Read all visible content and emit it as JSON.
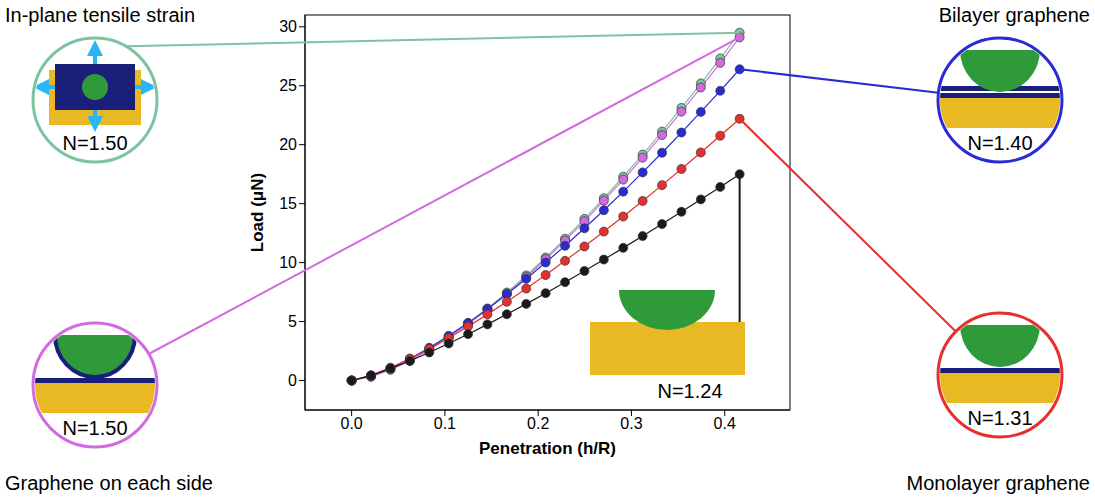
{
  "chart_data": {
    "type": "line",
    "x_label": "Penetration (h/R)",
    "y_label": "Load (μN)",
    "xlim": [
      -0.05,
      0.47
    ],
    "ylim": [
      -2.5,
      31
    ],
    "xticks": [
      {
        "value": 0,
        "label": "0.0"
      },
      0.1,
      0.2,
      0.3,
      0.4
    ],
    "yticks": [
      0,
      5,
      10,
      15,
      20,
      25,
      30
    ],
    "grid": false,
    "marker": "circle",
    "x": [
      0,
      0.0208,
      0.0416,
      0.0624,
      0.0832,
      0.104,
      0.1248,
      0.1456,
      0.1664,
      0.1872,
      0.208,
      0.2288,
      0.2496,
      0.2704,
      0.2912,
      0.312,
      0.3328,
      0.3536,
      0.3744,
      0.3952,
      0.416
    ],
    "series": [
      {
        "name": "In-plane tensile strain",
        "annotation": "N=1.50",
        "color": "#7cc4a0",
        "values": [
          0,
          0.33,
          0.93,
          1.71,
          2.64,
          3.69,
          4.85,
          6.11,
          7.46,
          8.91,
          10.43,
          12.03,
          13.71,
          15.46,
          17.28,
          19.16,
          21.11,
          23.12,
          25.19,
          27.32,
          29.5
        ]
      },
      {
        "name": "Graphene on each side",
        "annotation": "N=1.50",
        "color": "#d36be0",
        "values": [
          0,
          0.33,
          0.92,
          1.69,
          2.6,
          3.64,
          4.78,
          6.03,
          7.36,
          8.78,
          10.29,
          11.87,
          13.52,
          15.25,
          17.04,
          18.9,
          20.82,
          22.8,
          24.85,
          26.94,
          29.1
        ]
      },
      {
        "name": "Bilayer graphene",
        "annotation": "N=1.40",
        "color": "#2b2bd6",
        "values": [
          0,
          0.4,
          1.05,
          1.85,
          2.77,
          3.79,
          4.89,
          6.07,
          7.32,
          8.63,
          10.01,
          11.43,
          12.91,
          14.44,
          16.02,
          17.65,
          19.32,
          21.03,
          22.78,
          24.57,
          26.4
        ]
      },
      {
        "name": "Monolayer graphene",
        "annotation": "N=1.31",
        "color": "#e5302d",
        "values": [
          0,
          0.44,
          1.09,
          1.85,
          2.7,
          3.61,
          4.59,
          5.61,
          6.68,
          7.8,
          8.95,
          10.15,
          11.37,
          12.63,
          13.91,
          15.23,
          16.57,
          17.94,
          19.34,
          20.76,
          22.2
        ]
      },
      {
        "annotation": "N=1.24",
        "color": "#1a1a1a",
        "values": [
          0,
          0.43,
          1.01,
          1.66,
          2.38,
          3.14,
          3.93,
          4.76,
          5.62,
          6.5,
          7.41,
          8.34,
          9.29,
          10.26,
          11.25,
          12.25,
          13.27,
          14.31,
          15.36,
          16.42,
          17.5
        ]
      }
    ]
  }
}
